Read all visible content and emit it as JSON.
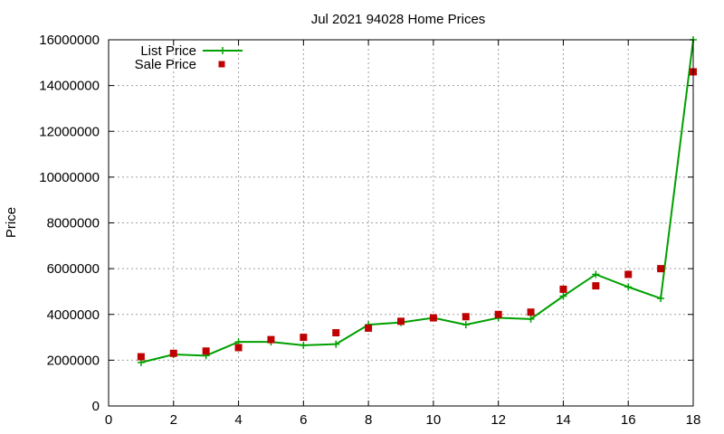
{
  "chart_data": {
    "type": "line",
    "title": "Jul 2021 94028 Home Prices",
    "xlabel": "",
    "ylabel": "Price",
    "xlim": [
      0,
      18
    ],
    "ylim": [
      0,
      16000000
    ],
    "x_ticks": [
      0,
      2,
      4,
      6,
      8,
      10,
      12,
      14,
      16,
      18
    ],
    "y_ticks": [
      0,
      2000000,
      4000000,
      6000000,
      8000000,
      10000000,
      12000000,
      14000000,
      16000000
    ],
    "grid": true,
    "legend_position": "top-left",
    "series": [
      {
        "name": "List Price",
        "style": "line-plus",
        "color": "#00a000",
        "x": [
          1,
          2,
          3,
          4,
          5,
          6,
          7,
          8,
          9,
          10,
          11,
          12,
          13,
          14,
          15,
          16,
          17,
          18
        ],
        "y": [
          1900000,
          2250000,
          2200000,
          2800000,
          2800000,
          2650000,
          2700000,
          3550000,
          3650000,
          3850000,
          3550000,
          3850000,
          3800000,
          4800000,
          5750000,
          5200000,
          4700000,
          16000000
        ]
      },
      {
        "name": "Sale Price",
        "style": "square-points",
        "color": "#c00000",
        "x": [
          1,
          2,
          3,
          4,
          5,
          6,
          7,
          8,
          9,
          10,
          11,
          12,
          13,
          14,
          15,
          16,
          17,
          18
        ],
        "y": [
          2150000,
          2300000,
          2400000,
          2550000,
          2900000,
          3000000,
          3200000,
          3400000,
          3700000,
          3850000,
          3900000,
          4000000,
          4100000,
          5100000,
          5250000,
          5750000,
          6000000,
          14600000
        ]
      }
    ]
  }
}
